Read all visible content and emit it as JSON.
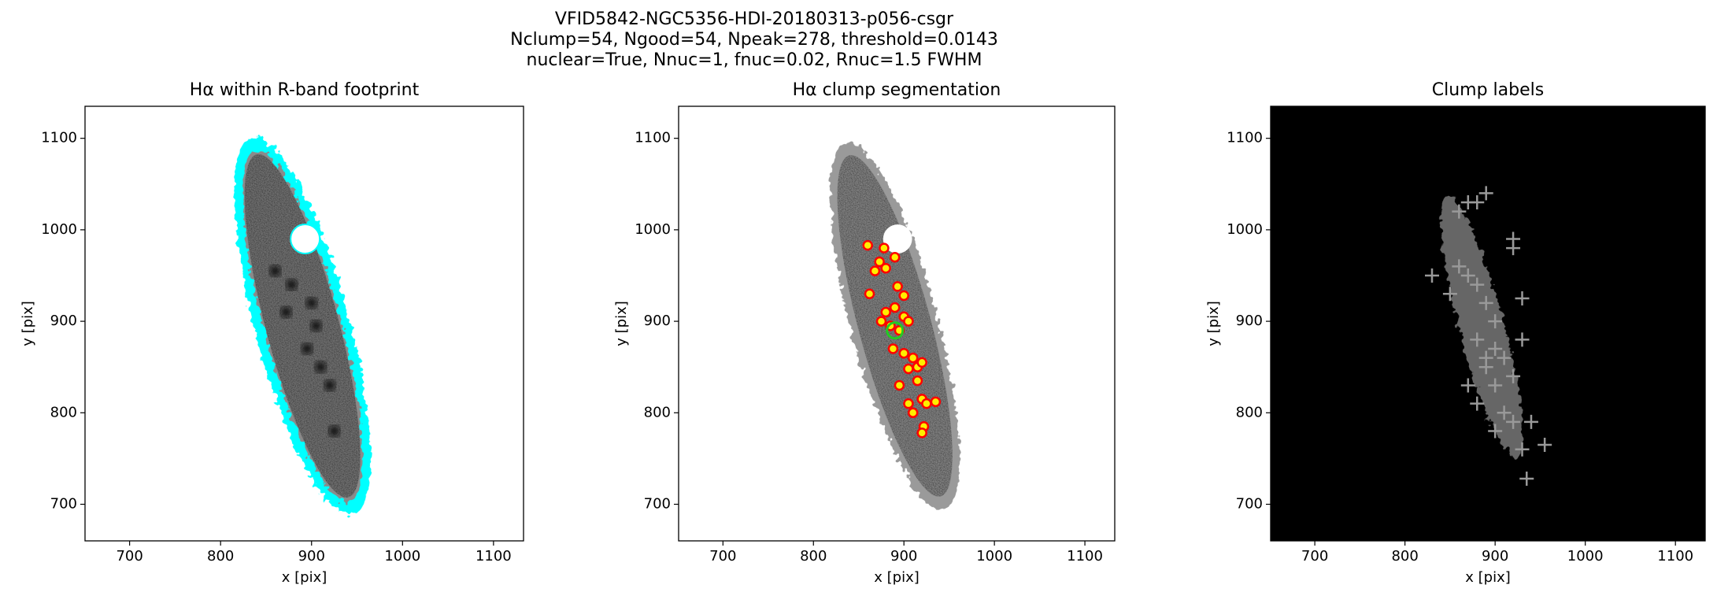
{
  "suptitle": [
    "VFID5842-NGC5356-HDI-20180313-p056-csgr",
    "Nclump=54, Ngood=54, Npeak=278, threshold=0.0143",
    "nuclear=True, Nnuc=1, fnuc=0.02, Rnuc=1.5 FWHM"
  ],
  "chart_data": [
    {
      "type": "image",
      "title": "Hα within R-band footprint",
      "xlabel": "x [pix]",
      "ylabel": "y [pix]",
      "xlim": [
        651,
        1133
      ],
      "ylim": [
        660,
        1135
      ],
      "xticks": [
        700,
        800,
        900,
        1000,
        1100
      ],
      "yticks": [
        700,
        800,
        900,
        1000,
        1100
      ]
    },
    {
      "type": "scatter",
      "title": "Hα clump segmentation",
      "xlabel": "x [pix]",
      "ylabel": "y [pix]",
      "xlim": [
        651,
        1133
      ],
      "ylim": [
        660,
        1135
      ],
      "xticks": [
        700,
        800,
        900,
        1000,
        1100
      ],
      "yticks": [
        700,
        800,
        900,
        1000,
        1100
      ],
      "series": [
        {
          "name": "clumps",
          "color": "#ff0000",
          "x": [
            860,
            878,
            890,
            873,
            868,
            880,
            862,
            893,
            900,
            880,
            890,
            900,
            875,
            885,
            895,
            905,
            888,
            900,
            910,
            915,
            905,
            920,
            895,
            915,
            920,
            905,
            925,
            935,
            910,
            922,
            920
          ],
          "values": [
            983,
            980,
            970,
            965,
            955,
            958,
            930,
            938,
            928,
            910,
            915,
            905,
            900,
            895,
            890,
            900,
            870,
            865,
            860,
            850,
            848,
            855,
            830,
            835,
            815,
            810,
            810,
            812,
            800,
            785,
            778
          ]
        },
        {
          "name": "nucleus",
          "color": "#22cc22",
          "x": [
            890
          ],
          "values": [
            890
          ]
        }
      ]
    },
    {
      "type": "scatter",
      "title": "Clump labels",
      "xlabel": "x [pix]",
      "ylabel": "y [pix]",
      "xlim": [
        651,
        1133
      ],
      "ylim": [
        660,
        1135
      ],
      "xticks": [
        700,
        800,
        900,
        1000,
        1100
      ],
      "yticks": [
        700,
        800,
        900,
        1000,
        1100
      ],
      "series": [
        {
          "name": "peaks",
          "color": "#999999",
          "x": [
            870,
            880,
            890,
            860,
            920,
            920,
            830,
            850,
            860,
            870,
            880,
            890,
            930,
            900,
            880,
            900,
            910,
            930,
            890,
            920,
            870,
            880,
            910,
            920,
            900,
            940,
            930,
            955,
            935,
            890,
            900
          ],
          "values": [
            1030,
            1030,
            1040,
            1020,
            990,
            980,
            950,
            930,
            960,
            950,
            940,
            920,
            925,
            900,
            880,
            870,
            860,
            880,
            850,
            840,
            830,
            810,
            800,
            790,
            780,
            790,
            760,
            765,
            728,
            860,
            830
          ]
        }
      ]
    }
  ]
}
